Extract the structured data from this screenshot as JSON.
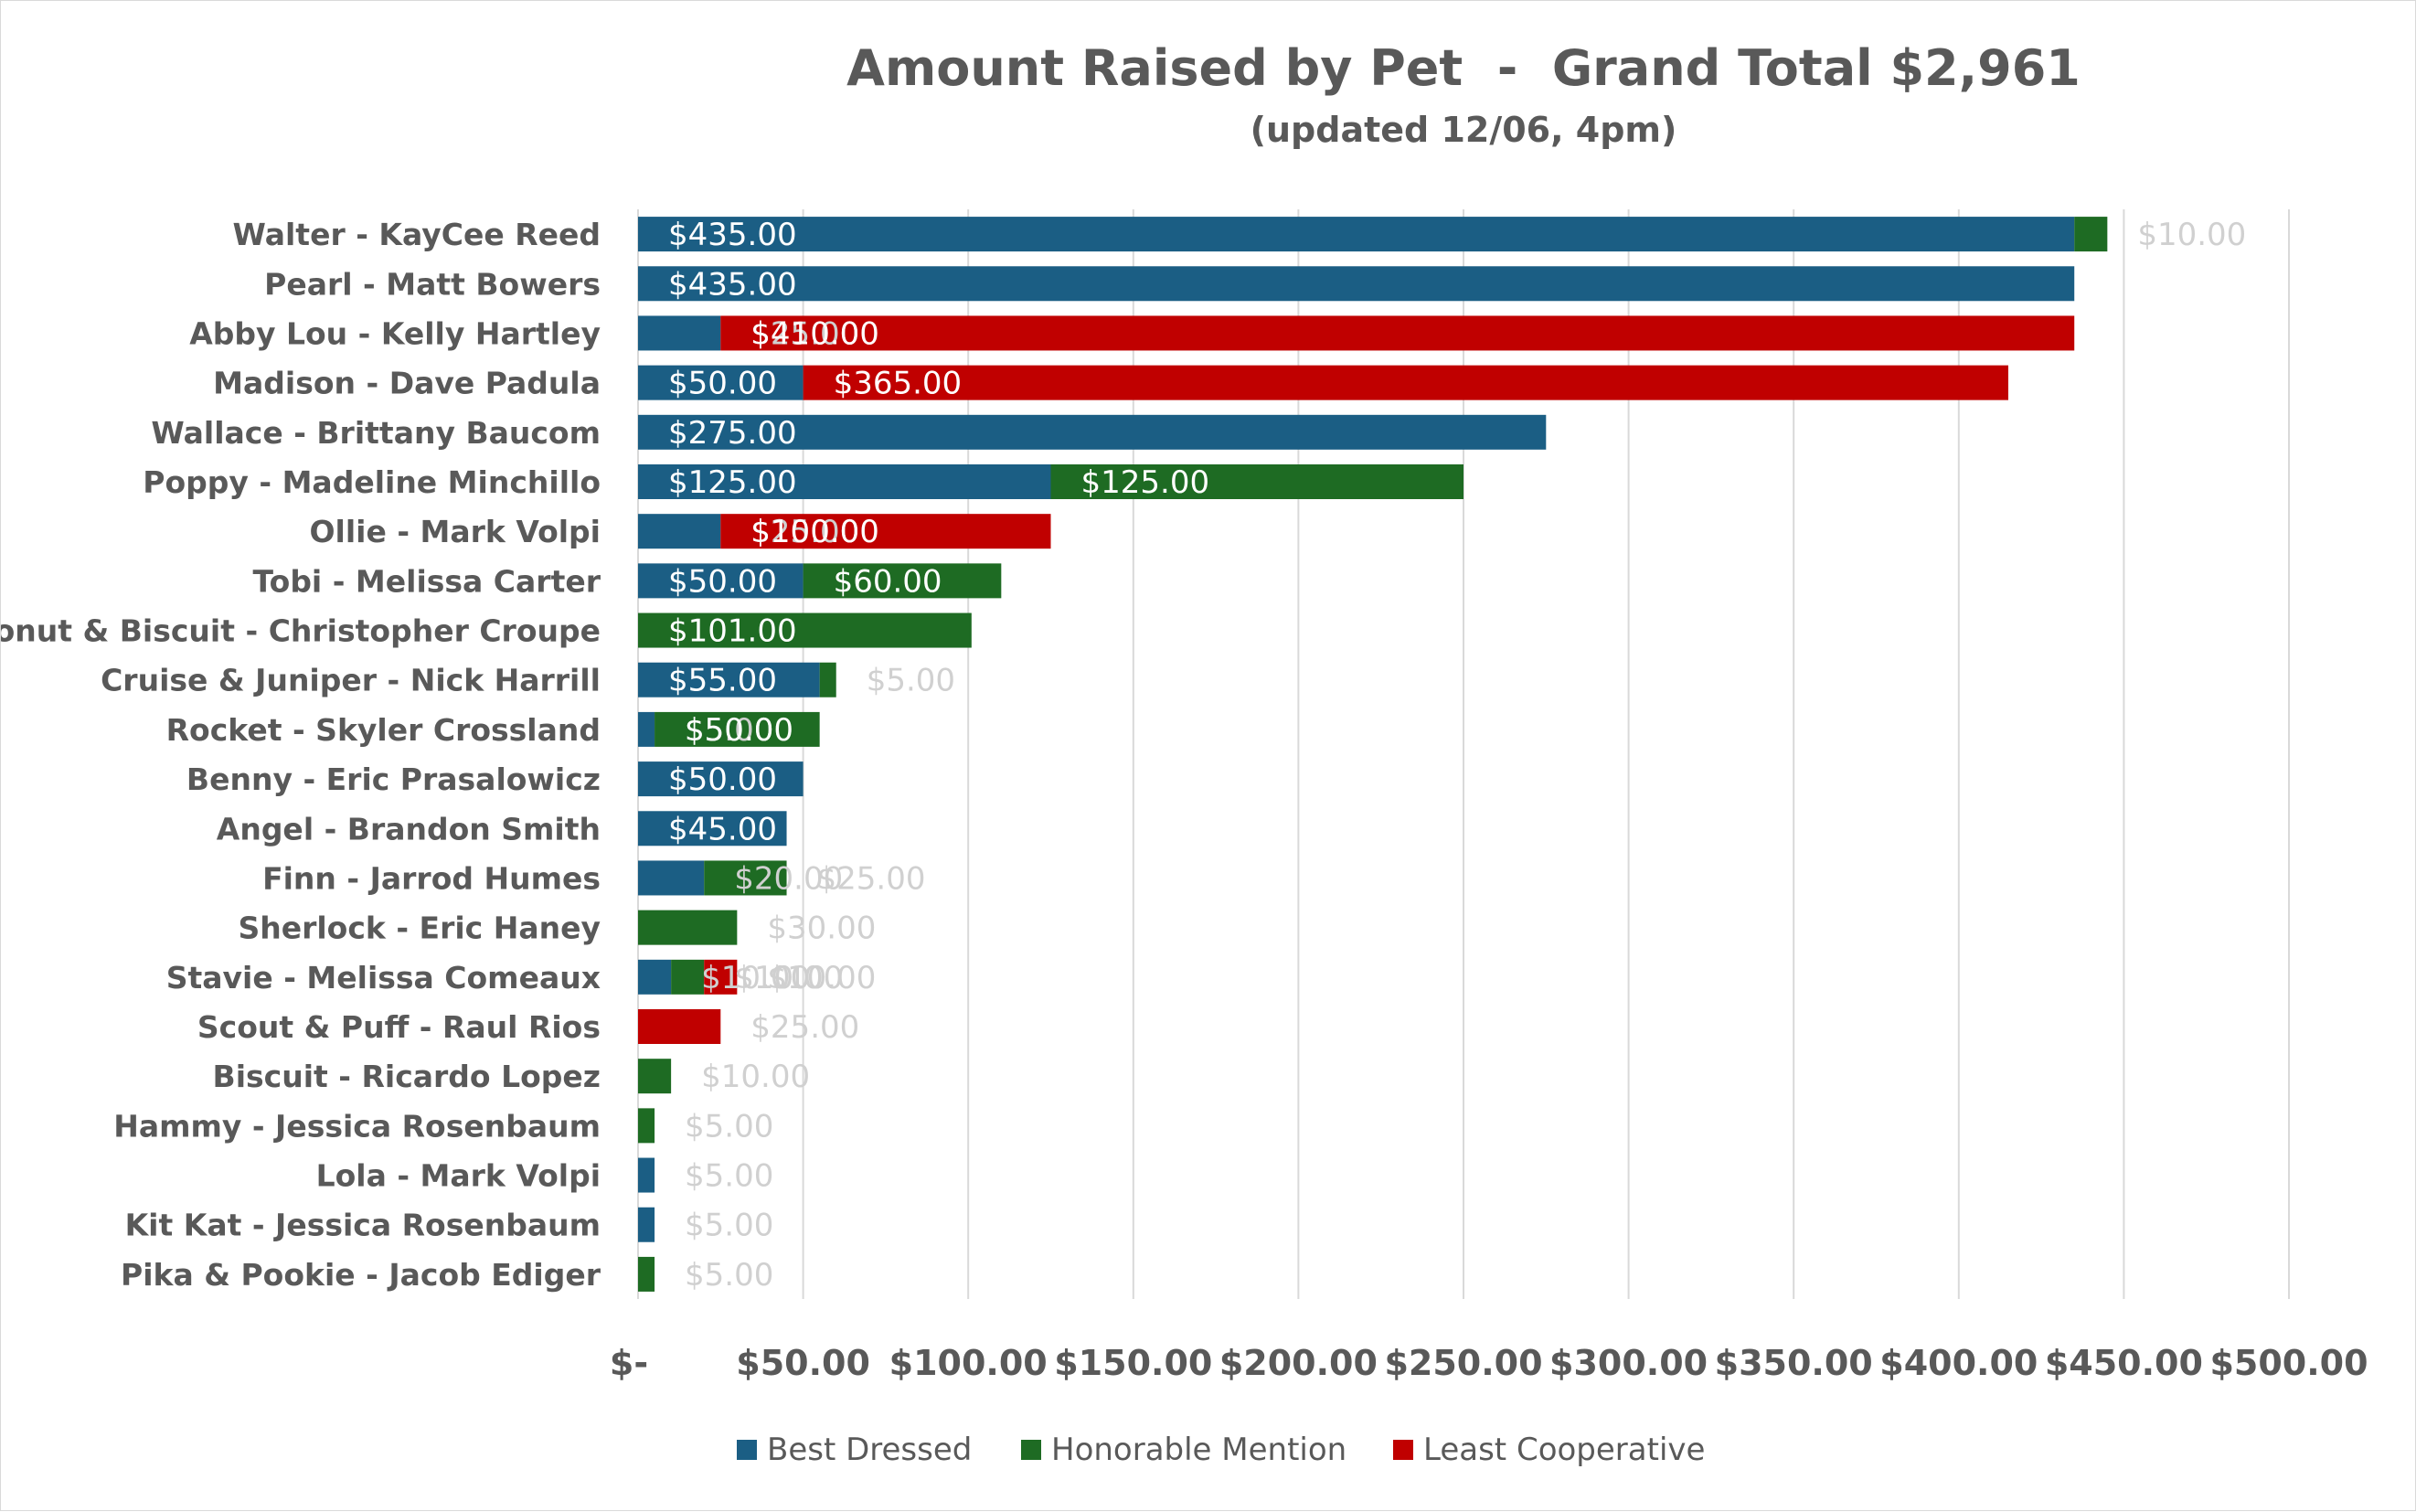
{
  "chart_data": {
    "type": "bar",
    "orientation": "horizontal",
    "stacked": true,
    "title": "Amount Raised by Pet  -  Grand Total $2,961",
    "subtitle": "(updated 12/06, 4pm)",
    "xlim": [
      0,
      500
    ],
    "x_ticks": [
      0,
      50,
      100,
      150,
      200,
      250,
      300,
      350,
      400,
      450,
      500
    ],
    "x_tick_labels": [
      "$-",
      "$50.00",
      "$100.00",
      "$150.00",
      "$200.00",
      "$250.00",
      "$300.00",
      "$350.00",
      "$400.00",
      "$450.00",
      "$500.00"
    ],
    "grid": true,
    "legend_position": "bottom",
    "categories": [
      "Walter - KayCee Reed",
      "Pearl - Matt Bowers",
      "Abby Lou - Kelly Hartley",
      "Madison - Dave Padula",
      "Wallace - Brittany Baucom",
      "Poppy - Madeline Minchillo",
      "Ollie - Mark Volpi",
      "Tobi - Melissa Carter",
      "Donut & Biscuit - Christopher Croupe",
      "Cruise & Juniper - Nick Harrill",
      "Rocket - Skyler Crossland",
      "Benny - Eric Prasalowicz",
      "Angel - Brandon Smith",
      "Finn - Jarrod Humes",
      "Sherlock - Eric Haney",
      "Stavie - Melissa Comeaux",
      "Scout & Puff - Raul Rios",
      "Biscuit - Ricardo Lopez",
      "Hammy - Jessica Rosenbaum",
      "Lola - Mark Volpi",
      "Kit Kat - Jessica Rosenbaum",
      "Pika & Pookie - Jacob Ediger"
    ],
    "series": [
      {
        "name": "Best Dressed",
        "color": "#1b5e84",
        "values": [
          435,
          435,
          25,
          50,
          275,
          125,
          25,
          50,
          0,
          55,
          5,
          50,
          45,
          20,
          0,
          10,
          0,
          0,
          0,
          5,
          5,
          0
        ]
      },
      {
        "name": "Honorable Mention",
        "color": "#1e6b23",
        "values": [
          10,
          0,
          0,
          0,
          0,
          125,
          0,
          60,
          101,
          5,
          50,
          0,
          0,
          25,
          30,
          10,
          0,
          10,
          5,
          0,
          0,
          5
        ]
      },
      {
        "name": "Least Cooperative",
        "color": "#c00000",
        "values": [
          0,
          0,
          410,
          365,
          0,
          0,
          100,
          0,
          0,
          0,
          0,
          0,
          0,
          0,
          0,
          10,
          25,
          0,
          0,
          0,
          0,
          0
        ]
      }
    ],
    "data_labels": [
      [
        "$435.00",
        "$10.00",
        ""
      ],
      [
        "$435.00",
        "",
        ""
      ],
      [
        "$25.00",
        "",
        "$410.00"
      ],
      [
        "$50.00",
        "",
        "$365.00"
      ],
      [
        "$275.00",
        "",
        ""
      ],
      [
        "$125.00",
        "$125.00",
        ""
      ],
      [
        "$25.00",
        "",
        "$100.00"
      ],
      [
        "$50.00",
        "$60.00",
        ""
      ],
      [
        "",
        "$101.00",
        ""
      ],
      [
        "$55.00",
        "$5.00",
        ""
      ],
      [
        "$5.00",
        "$50.00",
        ""
      ],
      [
        "$50.00",
        "",
        ""
      ],
      [
        "$45.00",
        "",
        ""
      ],
      [
        "$20.00",
        "$25.00",
        ""
      ],
      [
        "",
        "$30.00",
        ""
      ],
      [
        "$10.00",
        "$10.00",
        "$10.00"
      ],
      [
        "",
        "",
        "$25.00"
      ],
      [
        "",
        "$10.00",
        ""
      ],
      [
        "",
        "$5.00",
        ""
      ],
      [
        "$5.00",
        "",
        ""
      ],
      [
        "$5.00",
        "",
        ""
      ],
      [
        "",
        "$5.00",
        ""
      ]
    ]
  }
}
